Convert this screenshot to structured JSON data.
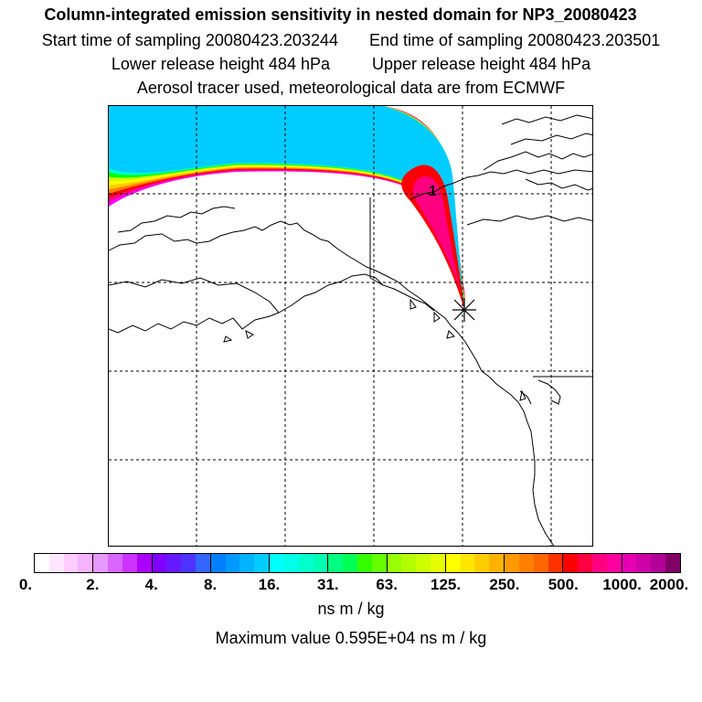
{
  "header": {
    "title": "Column-integrated emission sensitivity in nested domain for NP3_20080423",
    "start_label": "Start time of sampling 20080423.203244",
    "end_label": "End time of sampling 20080423.203501",
    "lower_label": "Lower release height  484 hPa",
    "upper_label": "Upper release height  484 hPa",
    "tracer_line": "Aerosol tracer used, meteorological data are from ECMWF"
  },
  "map": {
    "marker_label": "1",
    "plume_colors": [
      "#ff00ff",
      "#ff0080",
      "#ff0000",
      "#ff8000",
      "#ffcc00",
      "#ffff00",
      "#ccff00",
      "#00ff00",
      "#00ffcc",
      "#00ccff"
    ]
  },
  "colorbar": {
    "ticks": [
      "0.",
      "2.",
      "4.",
      "8.",
      "16.",
      "31.",
      "63.",
      "125.",
      "250.",
      "500.",
      "1000.",
      "2000."
    ],
    "blocks": [
      [
        "#ffffff",
        "#ffe6ff",
        "#ffccff",
        "#f5b3ff"
      ],
      [
        "#e699ff",
        "#d966ff",
        "#cc33ff",
        "#aa00ff"
      ],
      [
        "#8000ff",
        "#6619ff",
        "#4d33ff",
        "#3366ff"
      ],
      [
        "#0080ff",
        "#0099ff",
        "#00b3ff",
        "#00ccff"
      ],
      [
        "#00ffff",
        "#00ffe6",
        "#00ffcc",
        "#00ffb3"
      ],
      [
        "#00ff80",
        "#00ff55",
        "#33ff00",
        "#66ff00"
      ],
      [
        "#99ff00",
        "#b3ff00",
        "#ccff00",
        "#e6ff00"
      ],
      [
        "#ffff00",
        "#ffe600",
        "#ffcc00",
        "#ffb300"
      ],
      [
        "#ff9900",
        "#ff8000",
        "#ff6600",
        "#ff3300"
      ],
      [
        "#ff0000",
        "#ff0040",
        "#ff0080",
        "#ff00a0"
      ],
      [
        "#e600b3",
        "#cc00a6",
        "#b30099",
        "#800066"
      ]
    ],
    "units": "ns m / kg"
  },
  "footer": {
    "max_value": "Maximum value  0.595E+04 ns m / kg"
  }
}
